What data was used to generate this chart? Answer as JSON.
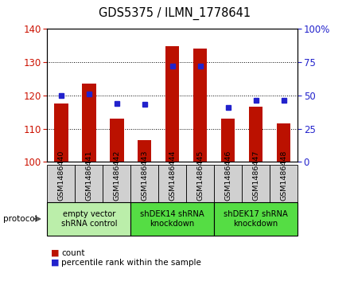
{
  "title": "GDS5375 / ILMN_1778641",
  "samples": [
    "GSM1486440",
    "GSM1486441",
    "GSM1486442",
    "GSM1486443",
    "GSM1486444",
    "GSM1486445",
    "GSM1486446",
    "GSM1486447",
    "GSM1486448"
  ],
  "counts": [
    117.5,
    123.5,
    113.0,
    106.5,
    134.8,
    134.2,
    113.0,
    116.5,
    111.5
  ],
  "percentiles": [
    50,
    51,
    44,
    43,
    72,
    72,
    41,
    46,
    46
  ],
  "ylim_left": [
    100,
    140
  ],
  "ylim_right": [
    0,
    100
  ],
  "yticks_left": [
    100,
    110,
    120,
    130,
    140
  ],
  "yticks_right": [
    0,
    25,
    50,
    75,
    100
  ],
  "ytick_labels_right": [
    "0",
    "25",
    "50",
    "75",
    "100%"
  ],
  "bar_color": "#bb1100",
  "dot_color": "#2222cc",
  "bar_width": 0.5,
  "groups": [
    {
      "label": "empty vector\nshRNA control",
      "start": 0,
      "end": 3,
      "color": "#bbeeaa"
    },
    {
      "label": "shDEK14 shRNA\nknockdown",
      "start": 3,
      "end": 6,
      "color": "#55dd44"
    },
    {
      "label": "shDEK17 shRNA\nknockdown",
      "start": 6,
      "end": 9,
      "color": "#55dd44"
    }
  ],
  "protocol_label": "protocol",
  "legend_count_label": "count",
  "legend_percentile_label": "percentile rank within the sample",
  "tick_label_color_left": "#cc1100",
  "tick_label_color_right": "#2222cc",
  "bg_plot": "#ffffff",
  "bg_sample_box": "#d0d0d0",
  "spine_color": "#000000"
}
